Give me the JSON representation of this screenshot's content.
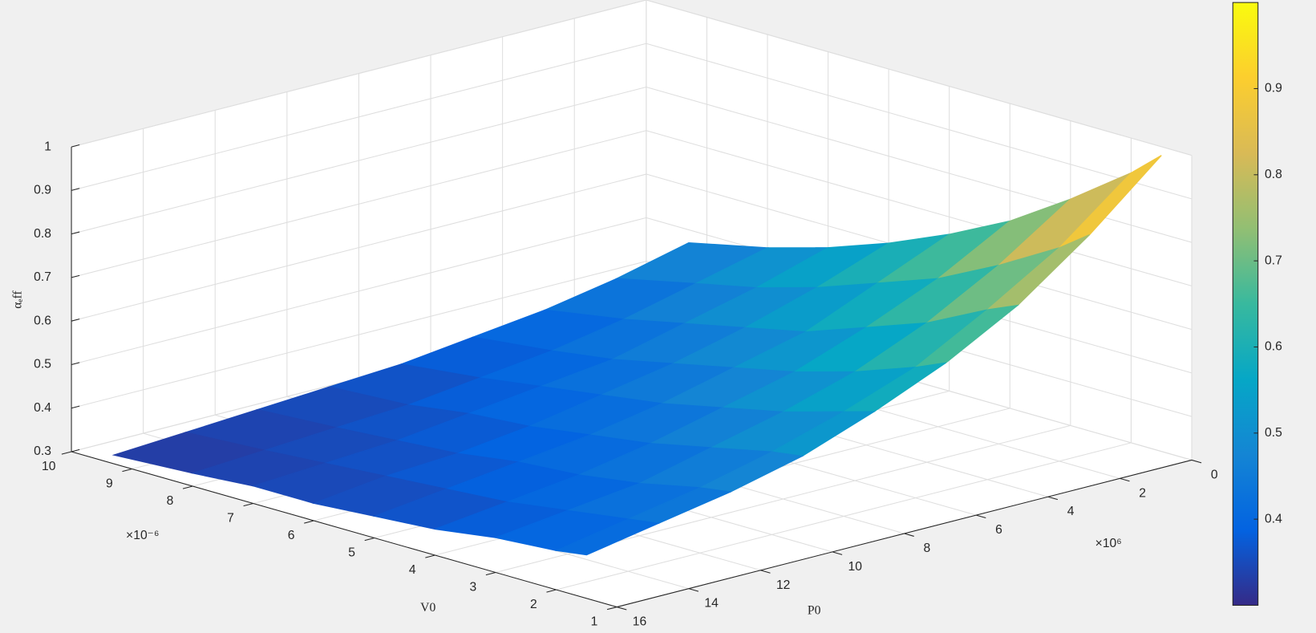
{
  "chart_data": {
    "type": "surface",
    "colormap": "parula",
    "grid": true,
    "x_label": "V0",
    "y_label": "P0",
    "z_label": "αₑff",
    "x_exponent": "×10⁻⁶",
    "y_exponent": "×10⁶",
    "x": [
      1.5,
      2,
      3,
      4,
      5,
      6,
      7,
      8,
      9.3
    ],
    "y": [
      0,
      2,
      4,
      6,
      8,
      10,
      12,
      14,
      16
    ],
    "z": [
      [
        0.98,
        0.92,
        0.82,
        0.73,
        0.66,
        0.6,
        0.55,
        0.51,
        0.47
      ],
      [
        0.84,
        0.79,
        0.71,
        0.64,
        0.59,
        0.54,
        0.5,
        0.47,
        0.43
      ],
      [
        0.72,
        0.69,
        0.62,
        0.57,
        0.52,
        0.49,
        0.46,
        0.43,
        0.4
      ],
      [
        0.63,
        0.6,
        0.55,
        0.51,
        0.48,
        0.45,
        0.42,
        0.4,
        0.38
      ],
      [
        0.56,
        0.54,
        0.5,
        0.47,
        0.44,
        0.42,
        0.4,
        0.38,
        0.36
      ],
      [
        0.5,
        0.49,
        0.46,
        0.43,
        0.41,
        0.39,
        0.38,
        0.36,
        0.35
      ],
      [
        0.46,
        0.45,
        0.42,
        0.4,
        0.39,
        0.37,
        0.36,
        0.35,
        0.34
      ],
      [
        0.43,
        0.42,
        0.4,
        0.38,
        0.37,
        0.36,
        0.35,
        0.34,
        0.33
      ],
      [
        0.4,
        0.39,
        0.38,
        0.36,
        0.35,
        0.34,
        0.34,
        0.33,
        0.32
      ]
    ],
    "xlim": [
      1,
      10
    ],
    "xticks": [
      1,
      2,
      3,
      4,
      5,
      6,
      7,
      8,
      9,
      10
    ],
    "ylim": [
      0,
      16
    ],
    "yticks": [
      0,
      2,
      4,
      6,
      8,
      10,
      12,
      14,
      16
    ],
    "zlim": [
      0.3,
      1
    ],
    "zticks": [
      0.3,
      0.4,
      0.5,
      0.6,
      0.7,
      0.8,
      0.9,
      1
    ],
    "colorbar": {
      "clim": [
        0.3,
        1
      ],
      "ticks": [
        0.4,
        0.5,
        0.6,
        0.7,
        0.8,
        0.9
      ]
    }
  }
}
